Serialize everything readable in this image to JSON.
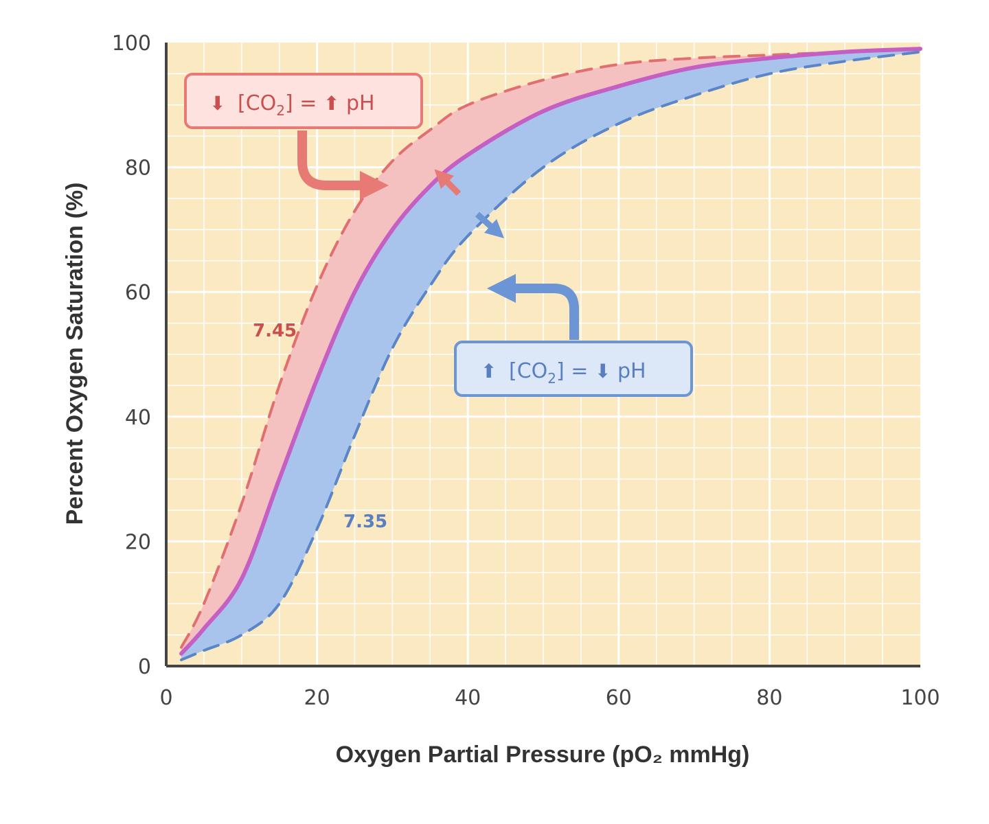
{
  "chart_data": {
    "type": "line",
    "title": "",
    "xlabel": "Oxygen Partial Pressure (pO₂ mmHg)",
    "ylabel": "Percent Oxygen Saturation (%)",
    "xlim": [
      0,
      100
    ],
    "ylim": [
      0,
      100
    ],
    "x_ticks": [
      "0",
      "20",
      "40",
      "60",
      "80",
      "100"
    ],
    "y_ticks": [
      "0",
      "20",
      "40",
      "60",
      "80",
      "100"
    ],
    "grid": true,
    "x": [
      2,
      5,
      10,
      15,
      20,
      25,
      30,
      35,
      40,
      50,
      60,
      70,
      80,
      90,
      100
    ],
    "series": [
      {
        "name": "7.45",
        "style": "dashed",
        "color": "#e07070",
        "values": [
          3,
          10,
          26,
          45,
          61,
          73,
          81,
          86,
          90,
          94,
          96.5,
          97.5,
          98,
          98.5,
          99
        ]
      },
      {
        "name": "",
        "style": "solid",
        "color": "#c45fc4",
        "values": [
          2,
          6,
          14,
          30,
          46,
          60,
          70,
          77,
          82,
          89,
          93,
          96,
          97.5,
          98.5,
          99
        ]
      },
      {
        "name": "7.35",
        "style": "dashed",
        "color": "#5a86c8",
        "values": [
          1,
          2.5,
          5,
          10,
          22,
          37,
          51,
          61,
          69,
          80,
          87,
          91.5,
          95,
          97,
          98.5
        ]
      }
    ],
    "annotations": {
      "left_shift": {
        "prefix_arrow": "⬇",
        "co2": "[CO",
        "sub": "2",
        "eq": "] = ",
        "mid_arrow": "⬆",
        "ph": " pH"
      },
      "right_shift": {
        "prefix_arrow": "⬆",
        "co2": "[CO",
        "sub": "2",
        "eq": "] = ",
        "mid_arrow": "⬇",
        "ph": " pH"
      }
    },
    "colors": {
      "background": "#fbe9c2",
      "grid": "#ffffff",
      "axis": "#444444",
      "left_fill": "#f4c0c0",
      "right_fill": "#a8c4ec",
      "left_accent": "#e77a74",
      "left_label": "#c9504f",
      "right_accent": "#6b95d4",
      "right_label": "#5a7fc0"
    }
  }
}
